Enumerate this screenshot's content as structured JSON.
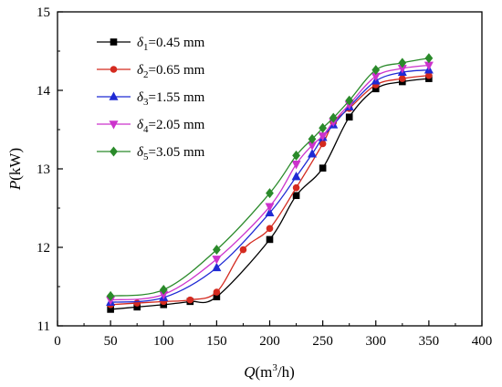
{
  "chart_data": {
    "type": "line",
    "xlabel": {
      "main": "Q",
      "unit_open": "(m",
      "unit_sup": "3",
      "unit_close": "/h)"
    },
    "ylabel": {
      "main": "P",
      "unit": "(kW)"
    },
    "xlim": [
      0,
      400
    ],
    "ylim": [
      11,
      15
    ],
    "xticks": [
      0,
      50,
      100,
      150,
      200,
      250,
      300,
      350,
      400
    ],
    "yticks": [
      11,
      12,
      13,
      14,
      15
    ],
    "grid": false,
    "legend_position": "top-left",
    "x": [
      50,
      75,
      100,
      125,
      150,
      175,
      200,
      225,
      240,
      250,
      260,
      275,
      300,
      325,
      350
    ],
    "series": [
      {
        "name": "0.45 mm",
        "sym": "δ",
        "sub": "1",
        "eq": "=",
        "color": "#000000",
        "marker": "square",
        "values": [
          11.21,
          11.24,
          11.27,
          11.31,
          11.37,
          null,
          12.1,
          12.66,
          null,
          13.01,
          null,
          13.66,
          14.02,
          14.11,
          14.15
        ]
      },
      {
        "name": "0.65 mm",
        "sym": "δ",
        "sub": "2",
        "eq": "=",
        "color": "#d42a1f",
        "marker": "circle",
        "values": [
          11.27,
          11.29,
          11.31,
          11.33,
          11.43,
          11.97,
          12.24,
          12.76,
          null,
          13.32,
          13.59,
          13.77,
          14.07,
          14.15,
          14.19
        ]
      },
      {
        "name": "1.55 mm",
        "sym": "δ",
        "sub": "3",
        "eq": "=",
        "color": "#1f2ad4",
        "marker": "triangle-up",
        "values": [
          11.3,
          null,
          11.36,
          null,
          11.74,
          null,
          12.44,
          12.9,
          13.19,
          13.4,
          13.56,
          13.79,
          14.12,
          14.23,
          14.26
        ]
      },
      {
        "name": "2.05 mm",
        "sym": "δ",
        "sub": "4",
        "eq": "=",
        "color": "#cc33cc",
        "marker": "triangle-down",
        "values": [
          11.33,
          null,
          11.4,
          null,
          11.85,
          null,
          12.52,
          13.06,
          13.3,
          13.42,
          13.6,
          13.82,
          14.18,
          14.28,
          14.32
        ]
      },
      {
        "name": "3.05 mm",
        "sym": "δ",
        "sub": "5",
        "eq": "=",
        "color": "#2a8a2a",
        "marker": "diamond",
        "values": [
          11.38,
          null,
          11.46,
          null,
          11.97,
          null,
          12.69,
          13.17,
          13.38,
          13.52,
          13.65,
          13.87,
          14.26,
          14.35,
          14.41
        ]
      }
    ]
  }
}
